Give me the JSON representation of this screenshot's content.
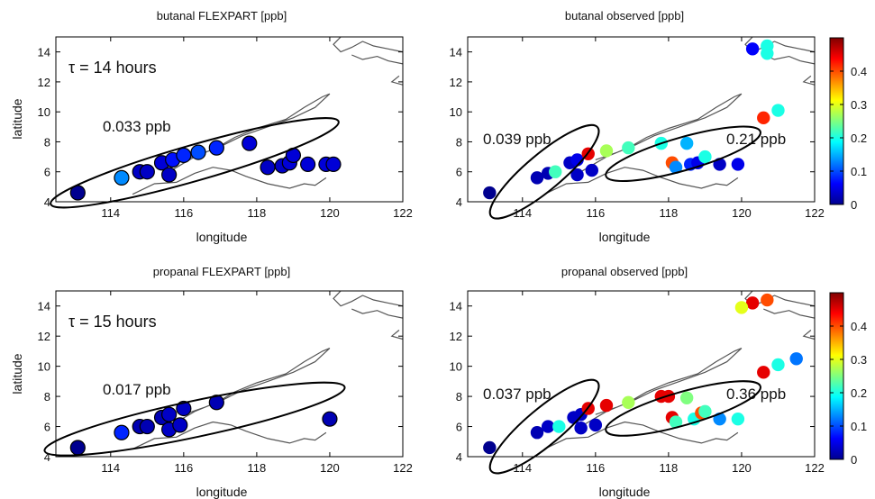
{
  "colormap": {
    "name": "jet",
    "stops": [
      "#00008f",
      "#0000ff",
      "#00ffff",
      "#ffff00",
      "#ff0000",
      "#800000"
    ],
    "range": [
      0,
      0.5
    ],
    "ticks": [
      "0",
      "0.1",
      "0.2",
      "0.3",
      "0.4"
    ]
  },
  "chart_data": [
    {
      "type": "scatter",
      "title": "butanal FLEXPART [ppb]",
      "xlabel": "longitude",
      "ylabel": "latitude",
      "xlim": [
        112.5,
        122
      ],
      "ylim": [
        4,
        15
      ],
      "xticks": [
        "114",
        "116",
        "118",
        "120",
        "122"
      ],
      "yticks": [
        "4",
        "6",
        "8",
        "10",
        "12",
        "14"
      ],
      "annotations": [
        {
          "text": "τ = 14 hours"
        },
        {
          "text": "0.033 ppb"
        }
      ],
      "points": [
        {
          "x": 113.1,
          "y": 4.6,
          "v": 0.0
        },
        {
          "x": 114.3,
          "y": 5.6,
          "v": 0.13
        },
        {
          "x": 114.8,
          "y": 6.0,
          "v": 0.03
        },
        {
          "x": 115.0,
          "y": 6.0,
          "v": 0.03
        },
        {
          "x": 115.4,
          "y": 6.6,
          "v": 0.04
        },
        {
          "x": 115.6,
          "y": 5.8,
          "v": 0.03
        },
        {
          "x": 115.7,
          "y": 6.8,
          "v": 0.07
        },
        {
          "x": 116.0,
          "y": 7.1,
          "v": 0.08
        },
        {
          "x": 116.4,
          "y": 7.3,
          "v": 0.1
        },
        {
          "x": 116.9,
          "y": 7.6,
          "v": 0.08
        },
        {
          "x": 117.8,
          "y": 7.9,
          "v": 0.04
        },
        {
          "x": 118.3,
          "y": 6.3,
          "v": 0.03
        },
        {
          "x": 118.7,
          "y": 6.4,
          "v": 0.03
        },
        {
          "x": 118.9,
          "y": 6.6,
          "v": 0.04
        },
        {
          "x": 119.0,
          "y": 7.1,
          "v": 0.04
        },
        {
          "x": 119.4,
          "y": 6.5,
          "v": 0.04
        },
        {
          "x": 119.9,
          "y": 6.5,
          "v": 0.04
        },
        {
          "x": 120.1,
          "y": 6.5,
          "v": 0.04
        }
      ]
    },
    {
      "type": "scatter",
      "title": "butanal observed [ppb]",
      "xlabel": "longitude",
      "ylabel": "",
      "xlim": [
        112.5,
        122
      ],
      "ylim": [
        4,
        15
      ],
      "xticks": [
        "114",
        "116",
        "118",
        "120",
        "122"
      ],
      "yticks": [
        "4",
        "6",
        "8",
        "10",
        "12",
        "14"
      ],
      "annotations": [
        {
          "text": "0.039 ppb"
        },
        {
          "text": "0.21 ppb"
        }
      ],
      "points": [
        {
          "x": 113.1,
          "y": 4.6,
          "v": 0.0
        },
        {
          "x": 114.4,
          "y": 5.6,
          "v": 0.02
        },
        {
          "x": 114.7,
          "y": 5.9,
          "v": 0.02
        },
        {
          "x": 114.9,
          "y": 6.0,
          "v": 0.22
        },
        {
          "x": 115.3,
          "y": 6.6,
          "v": 0.03
        },
        {
          "x": 115.5,
          "y": 6.8,
          "v": 0.05
        },
        {
          "x": 115.5,
          "y": 5.8,
          "v": 0.03
        },
        {
          "x": 115.8,
          "y": 7.2,
          "v": 0.45
        },
        {
          "x": 115.9,
          "y": 6.1,
          "v": 0.03
        },
        {
          "x": 116.3,
          "y": 7.4,
          "v": 0.27
        },
        {
          "x": 116.9,
          "y": 7.6,
          "v": 0.22
        },
        {
          "x": 117.8,
          "y": 7.9,
          "v": 0.2
        },
        {
          "x": 118.1,
          "y": 6.6,
          "v": 0.4
        },
        {
          "x": 118.2,
          "y": 6.3,
          "v": 0.13
        },
        {
          "x": 118.5,
          "y": 7.9,
          "v": 0.15
        },
        {
          "x": 118.6,
          "y": 6.5,
          "v": 0.08
        },
        {
          "x": 118.8,
          "y": 6.6,
          "v": 0.05
        },
        {
          "x": 119.0,
          "y": 7.0,
          "v": 0.2
        },
        {
          "x": 119.4,
          "y": 6.5,
          "v": 0.03
        },
        {
          "x": 119.9,
          "y": 6.5,
          "v": 0.05
        },
        {
          "x": 120.3,
          "y": 14.2,
          "v": 0.06
        },
        {
          "x": 120.6,
          "y": 9.6,
          "v": 0.42
        },
        {
          "x": 120.7,
          "y": 14.4,
          "v": 0.2
        },
        {
          "x": 120.7,
          "y": 13.9,
          "v": 0.2
        },
        {
          "x": 121.0,
          "y": 10.1,
          "v": 0.2
        }
      ]
    },
    {
      "type": "scatter",
      "title": "propanal FLEXPART [ppb]",
      "xlabel": "longitude",
      "ylabel": "latitude",
      "xlim": [
        112.5,
        122
      ],
      "ylim": [
        4,
        15
      ],
      "xticks": [
        "114",
        "116",
        "118",
        "120",
        "122"
      ],
      "yticks": [
        "4",
        "6",
        "8",
        "10",
        "12",
        "14"
      ],
      "annotations": [
        {
          "text": "τ = 15 hours"
        },
        {
          "text": "0.017 ppb"
        }
      ],
      "points": [
        {
          "x": 113.1,
          "y": 4.6,
          "v": 0.0
        },
        {
          "x": 114.3,
          "y": 5.6,
          "v": 0.08
        },
        {
          "x": 114.8,
          "y": 6.0,
          "v": 0.02
        },
        {
          "x": 115.0,
          "y": 6.0,
          "v": 0.02
        },
        {
          "x": 115.4,
          "y": 6.6,
          "v": 0.02
        },
        {
          "x": 115.6,
          "y": 6.8,
          "v": 0.03
        },
        {
          "x": 115.6,
          "y": 5.8,
          "v": 0.03
        },
        {
          "x": 115.9,
          "y": 6.1,
          "v": 0.03
        },
        {
          "x": 116.0,
          "y": 7.2,
          "v": 0.03
        },
        {
          "x": 116.9,
          "y": 7.6,
          "v": 0.02
        },
        {
          "x": 120.0,
          "y": 6.5,
          "v": 0.02
        }
      ]
    },
    {
      "type": "scatter",
      "title": "propanal observed [ppb]",
      "xlabel": "longitude",
      "ylabel": "",
      "xlim": [
        112.5,
        122
      ],
      "ylim": [
        4,
        15
      ],
      "xticks": [
        "114",
        "116",
        "118",
        "120",
        "122"
      ],
      "yticks": [
        "4",
        "6",
        "8",
        "10",
        "12",
        "14"
      ],
      "annotations": [
        {
          "text": "0.037 ppb"
        },
        {
          "text": "0.36 ppb"
        }
      ],
      "points": [
        {
          "x": 113.1,
          "y": 4.6,
          "v": 0.0
        },
        {
          "x": 114.4,
          "y": 5.6,
          "v": 0.02
        },
        {
          "x": 114.7,
          "y": 6.0,
          "v": 0.03
        },
        {
          "x": 115.0,
          "y": 6.0,
          "v": 0.2
        },
        {
          "x": 115.4,
          "y": 6.6,
          "v": 0.03
        },
        {
          "x": 115.6,
          "y": 6.8,
          "v": 0.03
        },
        {
          "x": 115.6,
          "y": 5.9,
          "v": 0.03
        },
        {
          "x": 115.8,
          "y": 7.2,
          "v": 0.45
        },
        {
          "x": 116.0,
          "y": 6.1,
          "v": 0.03
        },
        {
          "x": 116.3,
          "y": 7.4,
          "v": 0.45
        },
        {
          "x": 116.9,
          "y": 7.6,
          "v": 0.27
        },
        {
          "x": 117.8,
          "y": 8.0,
          "v": 0.45
        },
        {
          "x": 118.0,
          "y": 8.0,
          "v": 0.45
        },
        {
          "x": 118.1,
          "y": 6.6,
          "v": 0.45
        },
        {
          "x": 118.2,
          "y": 6.3,
          "v": 0.22
        },
        {
          "x": 118.5,
          "y": 7.9,
          "v": 0.25
        },
        {
          "x": 118.7,
          "y": 6.5,
          "v": 0.2
        },
        {
          "x": 118.9,
          "y": 6.9,
          "v": 0.4
        },
        {
          "x": 119.0,
          "y": 7.0,
          "v": 0.22
        },
        {
          "x": 119.4,
          "y": 6.5,
          "v": 0.13
        },
        {
          "x": 119.9,
          "y": 6.5,
          "v": 0.2
        },
        {
          "x": 120.3,
          "y": 14.2,
          "v": 0.45
        },
        {
          "x": 120.6,
          "y": 9.6,
          "v": 0.45
        },
        {
          "x": 120.0,
          "y": 13.9,
          "v": 0.3
        },
        {
          "x": 120.7,
          "y": 14.4,
          "v": 0.4
        },
        {
          "x": 121.0,
          "y": 10.1,
          "v": 0.2
        },
        {
          "x": 121.5,
          "y": 10.5,
          "v": 0.12
        }
      ]
    }
  ]
}
